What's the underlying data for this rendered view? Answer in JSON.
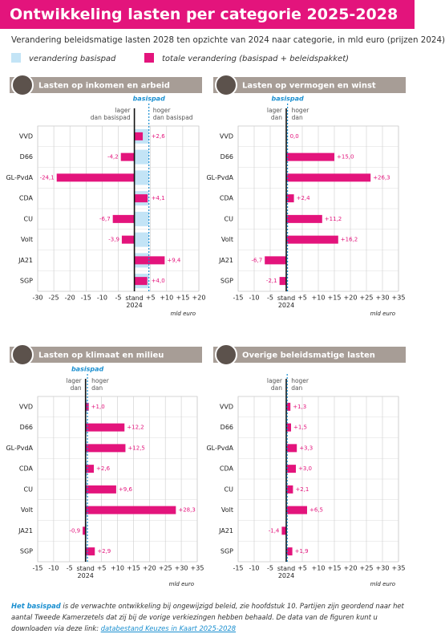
{
  "header": {
    "title": "Ontwikkeling lasten per categorie 2025-2028",
    "subtitle": "Verandering beleidsmatige lasten 2028 ten opzichte van 2024 naar categorie, in mld euro (prijzen 2024)"
  },
  "legend": [
    {
      "name": "verandering basispad",
      "color": "#c3e4f6"
    },
    {
      "name": "totale verandering (basispad + beleidspakket)",
      "color": "#e3147c"
    }
  ],
  "chart_data": [
    {
      "type": "bar",
      "orientation": "horizontal",
      "title": "Lasten op  inkomen en arbeid",
      "categories": [
        "VVD",
        "D66",
        "GL-PvdA",
        "CDA",
        "CU",
        "Volt",
        "JA21",
        "SGP"
      ],
      "basispad": 4.5,
      "values": [
        2.6,
        -4.2,
        -24.1,
        4.1,
        -6.7,
        -3.9,
        9.4,
        4.0
      ],
      "value_labels": [
        "+2,6",
        "-4,2",
        "-24,1",
        "+4,1",
        "-6,7",
        "-3,9",
        "+9,4",
        "+4,0"
      ],
      "xlim": [
        -30,
        20
      ],
      "xticks": [
        -30,
        -25,
        -20,
        -15,
        -10,
        -5,
        {
          "value": 0,
          "label": "stand 2024"
        },
        {
          "value": 5,
          "label": "+5"
        },
        {
          "value": 10,
          "label": "+10"
        },
        {
          "value": 15,
          "label": "+15"
        },
        {
          "value": 20,
          "label": "+20"
        }
      ],
      "xlabel": "mld euro",
      "basispad_label": "basispad",
      "lower_label": [
        "lager",
        "dan basispad"
      ],
      "higher_label": [
        "hoger",
        "dan basispad"
      ],
      "grid": true
    },
    {
      "type": "bar",
      "orientation": "horizontal",
      "title": "Lasten op vermogen en winst",
      "categories": [
        "VVD",
        "D66",
        "GL-PvdA",
        "CDA",
        "CU",
        "Volt",
        "JA21",
        "SGP"
      ],
      "basispad": 0.4,
      "values": [
        0.0,
        15.0,
        26.3,
        2.4,
        11.2,
        16.2,
        -6.7,
        -2.1
      ],
      "value_labels": [
        "0,0",
        "+15,0",
        "+26,3",
        "+2,4",
        "+11,2",
        "+16,2",
        "-6,7",
        "-2,1"
      ],
      "xlim": [
        -15,
        35
      ],
      "xticks": [
        -15,
        -10,
        -5,
        {
          "value": 0,
          "label": "stand 2024"
        },
        {
          "value": 5,
          "label": "+5"
        },
        {
          "value": 10,
          "label": "+10"
        },
        {
          "value": 15,
          "label": "+15"
        },
        {
          "value": 20,
          "label": "+20"
        },
        {
          "value": 25,
          "label": "+25"
        },
        {
          "value": 30,
          "label": "+30"
        },
        {
          "value": 35,
          "label": "+35"
        }
      ],
      "xlabel": "mld euro",
      "basispad_label": "basispad",
      "lower_label": [
        "lager",
        "dan"
      ],
      "higher_label": [
        "hoger",
        "dan"
      ],
      "grid": true
    },
    {
      "type": "bar",
      "orientation": "horizontal",
      "title": "Lasten op klimaat en milieu",
      "categories": [
        "VVD",
        "D66",
        "GL-PvdA",
        "CDA",
        "CU",
        "Volt",
        "JA21",
        "SGP"
      ],
      "basispad": 0.6,
      "values": [
        1.0,
        12.2,
        12.5,
        2.6,
        9.6,
        28.3,
        -0.9,
        2.9
      ],
      "value_labels": [
        "+1,0",
        "+12,2",
        "+12,5",
        "+2,6",
        "+9,6",
        "+28,3",
        "-0,9",
        "+2,9"
      ],
      "xlim": [
        -15,
        35
      ],
      "xticks": [
        -15,
        -10,
        -5,
        {
          "value": 0,
          "label": "stand 2024"
        },
        {
          "value": 5,
          "label": "+5"
        },
        {
          "value": 10,
          "label": "+10"
        },
        {
          "value": 15,
          "label": "+15"
        },
        {
          "value": 20,
          "label": "+20"
        },
        {
          "value": 25,
          "label": "+25"
        },
        {
          "value": 30,
          "label": "+30"
        },
        {
          "value": 35,
          "label": "+35"
        }
      ],
      "xlabel": "mld euro",
      "basispad_label": "basispad",
      "lower_label": [
        "lager",
        "dan"
      ],
      "higher_label": [
        "hoger",
        "dan"
      ],
      "grid": true
    },
    {
      "type": "bar",
      "orientation": "horizontal",
      "title": "Overige beleidsmatige lasten",
      "categories": [
        "VVD",
        "D66",
        "GL-PvdA",
        "CDA",
        "CU",
        "Volt",
        "JA21",
        "SGP"
      ],
      "basispad": 0.3,
      "values": [
        1.3,
        1.5,
        3.3,
        3.0,
        2.1,
        6.5,
        -1.4,
        1.9
      ],
      "value_labels": [
        "+1,3",
        "+1,5",
        "+3,3",
        "+3,0",
        "+2,1",
        "+6,5",
        "-1,4",
        "+1,9"
      ],
      "xlim": [
        -15,
        35
      ],
      "xticks": [
        -15,
        -10,
        -5,
        {
          "value": 0,
          "label": "stand 2024"
        },
        {
          "value": 5,
          "label": "+5"
        },
        {
          "value": 10,
          "label": "+10"
        },
        {
          "value": 15,
          "label": "+15"
        },
        {
          "value": 20,
          "label": "+20"
        },
        {
          "value": 25,
          "label": "+25"
        },
        {
          "value": 30,
          "label": "+30"
        },
        {
          "value": 35,
          "label": "+35"
        }
      ],
      "xlabel": "mld euro",
      "lower_label": [
        "lager",
        "dan"
      ],
      "higher_label": [
        "hoger",
        "dan"
      ],
      "grid": true
    }
  ],
  "footer": {
    "term": "Het basispad",
    "text": " is de verwachte ontwikkeling bij ongewijzigd beleid, zie hoofdstuk 10. Partijen zijn geordend naar het aantal Tweede Kamerzetels dat zij bij de vorige verkiezingen hebben behaald. De data van de figuren kunt u downloaden via deze link: ",
    "link": "databestand Keuzes in Kaart 2025-2028"
  }
}
